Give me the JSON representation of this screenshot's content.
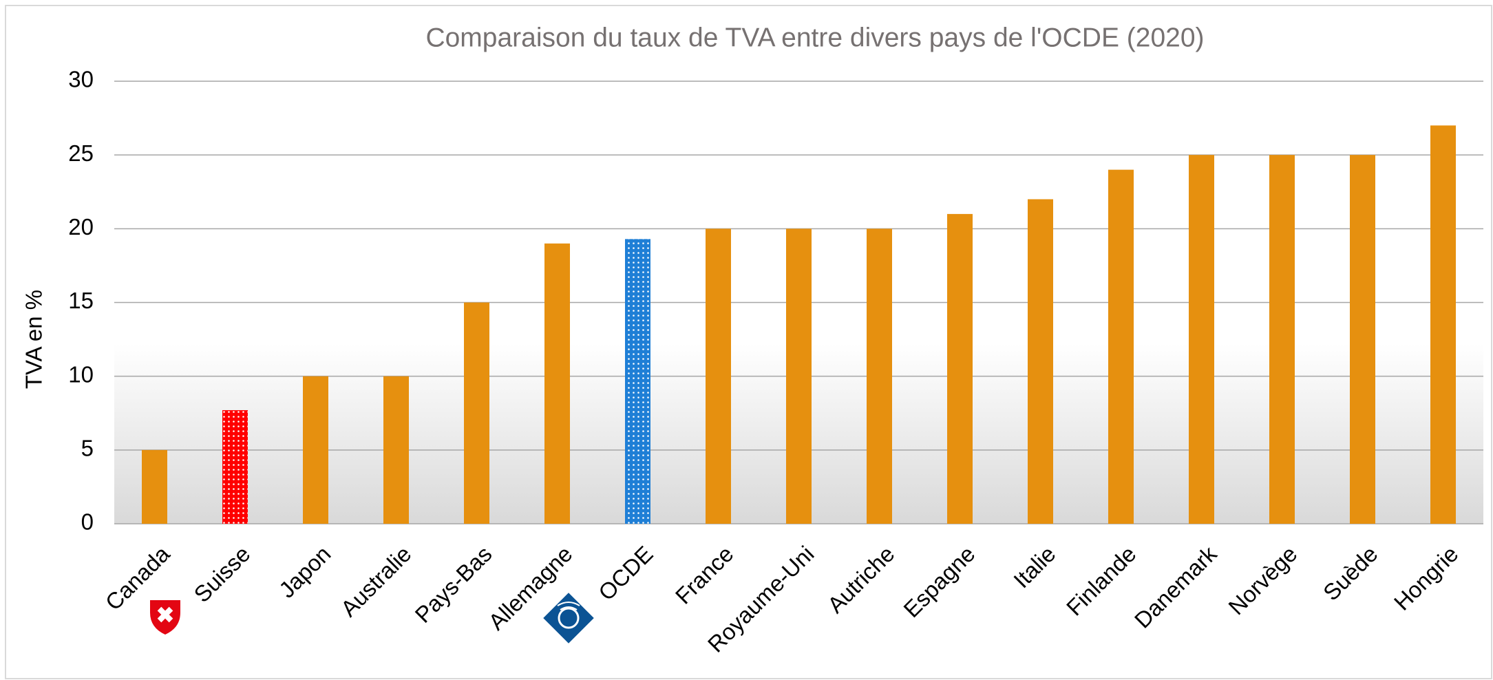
{
  "chart_data": {
    "type": "bar",
    "title": "Comparaison du taux de TVA entre divers pays de l'OCDE (2020)",
    "y_label": "TVA en %",
    "categories": [
      "Canada",
      "Suisse",
      "Japon",
      "Australie",
      "Pays-Bas",
      "Allemagne",
      "OCDE",
      "France",
      "Royaume-Uni",
      "Autriche",
      "Espagne",
      "Italie",
      "Finlande",
      "Danemark",
      "Norvège",
      "Suède",
      "Hongrie"
    ],
    "values": [
      5,
      7.7,
      10,
      10,
      15,
      19,
      19.3,
      20,
      20,
      20,
      21,
      22,
      24,
      25,
      25,
      25,
      27
    ],
    "color": "#e6900f",
    "colors": [
      "#e6900f",
      "#ff0000",
      "#e6900f",
      "#e6900f",
      "#e6900f",
      "#e6900f",
      "#1f7fd6",
      "#e6900f",
      "#e6900f",
      "#e6900f",
      "#e6900f",
      "#e6900f",
      "#e6900f",
      "#e6900f",
      "#e6900f",
      "#e6900f",
      "#e6900f"
    ],
    "ylim": [
      0,
      30
    ],
    "yticks": [
      0,
      5,
      10,
      15,
      20,
      25,
      30
    ],
    "grid": true
  }
}
